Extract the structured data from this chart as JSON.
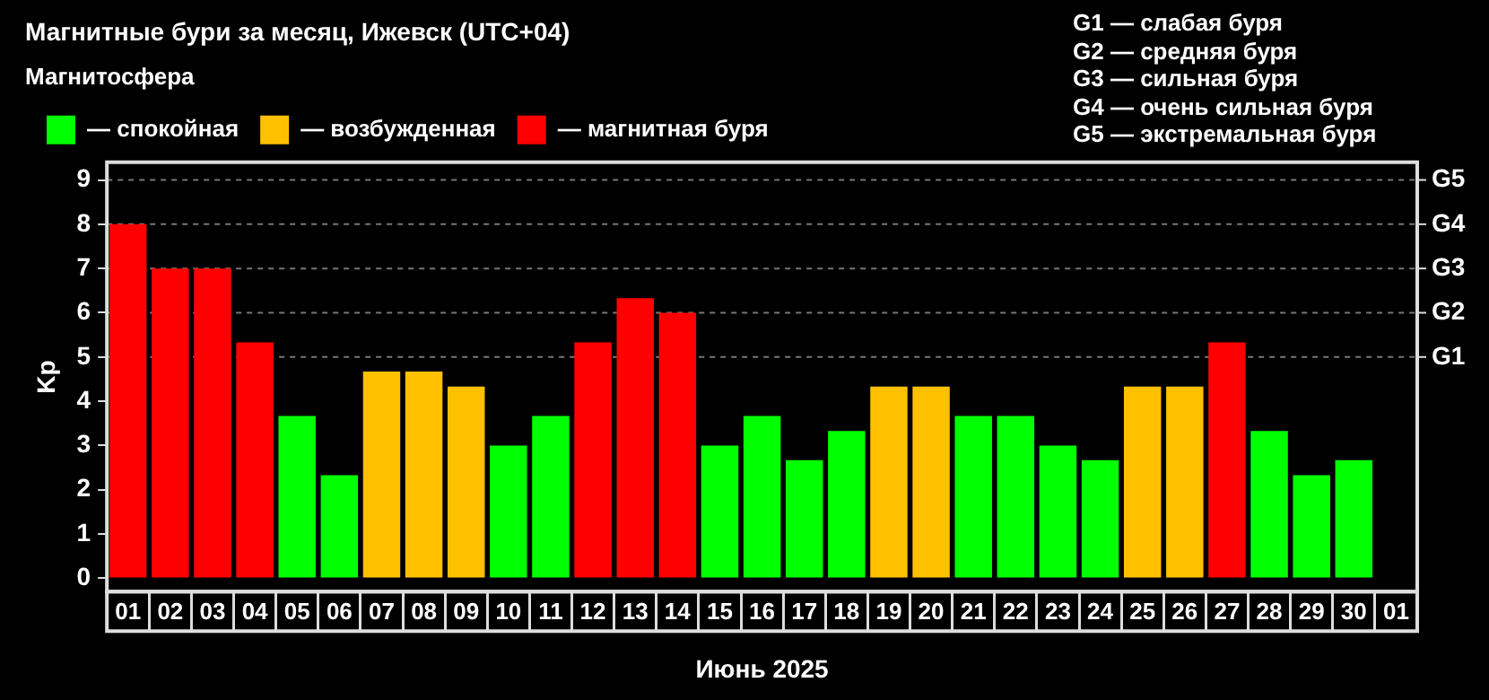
{
  "chart_data": {
    "type": "bar",
    "title": "Магнитные бури за месяц, Ижевск (UTC+04)",
    "legend_title": "Магнитосфера",
    "legend": "top left",
    "xlabel": "Июнь 2025",
    "ylabel": "Kp",
    "categories": [
      "01",
      "02",
      "03",
      "04",
      "05",
      "06",
      "07",
      "08",
      "09",
      "10",
      "11",
      "12",
      "13",
      "14",
      "15",
      "16",
      "17",
      "18",
      "19",
      "20",
      "21",
      "22",
      "23",
      "24",
      "25",
      "26",
      "27",
      "28",
      "29",
      "30",
      "01"
    ],
    "stacked": true,
    "series": [
      {
        "name": "— спокойная",
        "color": "#00ff00",
        "values": [
          null,
          null,
          null,
          null,
          3.67,
          2.33,
          null,
          null,
          null,
          3,
          3.67,
          null,
          null,
          null,
          3,
          3.67,
          2.67,
          3.33,
          null,
          null,
          3.67,
          3.67,
          3,
          2.67,
          null,
          null,
          null,
          3.33,
          2.33,
          2.67,
          null
        ]
      },
      {
        "name": "— возбужденная",
        "color": "#ffc000",
        "values": [
          null,
          null,
          null,
          null,
          null,
          null,
          4.67,
          4.67,
          4.33,
          null,
          null,
          null,
          null,
          null,
          null,
          null,
          null,
          null,
          4.33,
          4.33,
          null,
          null,
          null,
          null,
          4.33,
          4.33,
          null,
          null,
          null,
          null,
          null
        ]
      },
      {
        "name": "— магнитная буря",
        "color": "#ff0000",
        "values": [
          8,
          7,
          7,
          5.33,
          null,
          null,
          null,
          null,
          null,
          null,
          null,
          5.33,
          6.33,
          6,
          null,
          null,
          null,
          null,
          null,
          null,
          null,
          null,
          null,
          null,
          null,
          null,
          5.33,
          null,
          null,
          null,
          null
        ]
      }
    ],
    "ylim": [
      -0.3,
      9.4
    ],
    "yticks": [
      0,
      1,
      2,
      3,
      4,
      5,
      6,
      7,
      8,
      9
    ],
    "ref_lines": [
      {
        "axis": "y",
        "value": 5,
        "label": "G1",
        "color": "#777777",
        "line_style": "dashed"
      },
      {
        "axis": "y",
        "value": 6,
        "label": "G2",
        "color": "#777777",
        "line_style": "dashed"
      },
      {
        "axis": "y",
        "value": 7,
        "label": "G3",
        "color": "#777777",
        "line_style": "dashed"
      },
      {
        "axis": "y",
        "value": 8,
        "label": "G4",
        "color": "#777777",
        "line_style": "dashed"
      },
      {
        "axis": "y",
        "value": 9,
        "label": "G5",
        "color": "#777777",
        "line_style": "dashed"
      }
    ],
    "annotations": [
      "G1 — слабая буря",
      "G2 — средняя буря",
      "G3 — сильная буря",
      "G4 — очень сильная буря",
      "G5 — экстремальная буря"
    ]
  }
}
